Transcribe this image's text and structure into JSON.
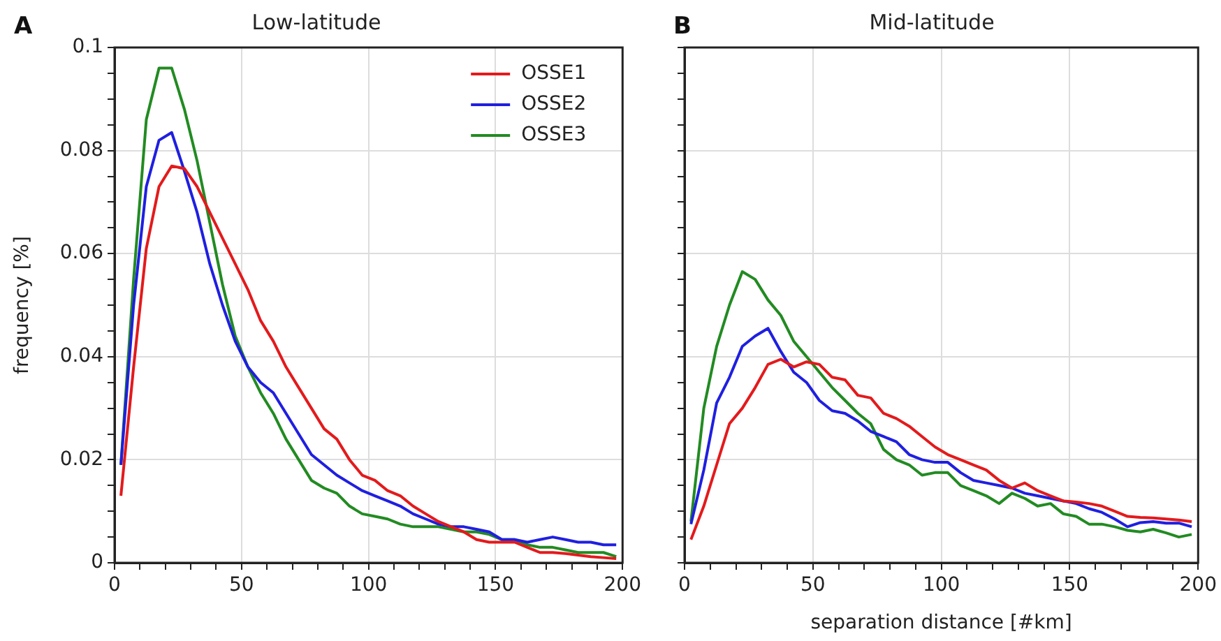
{
  "chart_data": [
    {
      "type": "line",
      "title": "Low-latitude",
      "ylabel": "frequency [%]",
      "annotations": [
        "A"
      ],
      "x": [
        2.5,
        7.5,
        12.5,
        17.5,
        22.5,
        27.5,
        32.5,
        37.5,
        42.5,
        47.5,
        52.5,
        57.5,
        62.5,
        67.5,
        72.5,
        77.5,
        82.5,
        87.5,
        92.5,
        97.5,
        102.5,
        107.5,
        112.5,
        117.5,
        122.5,
        127.5,
        132.5,
        137.5,
        142.5,
        147.5,
        152.5,
        157.5,
        162.5,
        167.5,
        172.5,
        177.5,
        182.5,
        187.5,
        192.5,
        197.5
      ],
      "series": [
        {
          "name": "OSSE1",
          "color": "#e31a1c",
          "values": [
            0.013,
            0.038,
            0.061,
            0.073,
            0.077,
            0.0765,
            0.073,
            0.068,
            0.063,
            0.058,
            0.053,
            0.047,
            0.043,
            0.038,
            0.034,
            0.03,
            0.026,
            0.024,
            0.02,
            0.017,
            0.016,
            0.014,
            0.013,
            0.011,
            0.0095,
            0.008,
            0.007,
            0.006,
            0.0045,
            0.004,
            0.004,
            0.004,
            0.003,
            0.002,
            0.002,
            0.0018,
            0.0015,
            0.0012,
            0.001,
            0.0008
          ]
        },
        {
          "name": "OSSE2",
          "color": "#1f1fe0",
          "values": [
            0.019,
            0.05,
            0.073,
            0.082,
            0.0835,
            0.076,
            0.068,
            0.058,
            0.05,
            0.043,
            0.038,
            0.035,
            0.033,
            0.029,
            0.025,
            0.021,
            0.019,
            0.017,
            0.0155,
            0.014,
            0.013,
            0.012,
            0.011,
            0.0095,
            0.0085,
            0.0075,
            0.007,
            0.007,
            0.0065,
            0.006,
            0.0045,
            0.0045,
            0.004,
            0.0045,
            0.005,
            0.0045,
            0.004,
            0.004,
            0.0035,
            0.0035
          ]
        },
        {
          "name": "OSSE3",
          "color": "#228b22",
          "values": [
            0.019,
            0.055,
            0.086,
            0.096,
            0.096,
            0.088,
            0.078,
            0.066,
            0.054,
            0.044,
            0.038,
            0.033,
            0.029,
            0.024,
            0.02,
            0.016,
            0.0145,
            0.0135,
            0.011,
            0.0095,
            0.009,
            0.0085,
            0.0075,
            0.007,
            0.007,
            0.007,
            0.0065,
            0.006,
            0.006,
            0.0055,
            0.0045,
            0.0045,
            0.0035,
            0.003,
            0.003,
            0.0025,
            0.002,
            0.002,
            0.002,
            0.0012
          ]
        }
      ],
      "xlim": [
        0,
        200
      ],
      "xticks": [
        0,
        {
          "value": 10,
          "label": null
        },
        {
          "value": 20,
          "label": null
        },
        {
          "value": 30,
          "label": null
        },
        {
          "value": 40,
          "label": null
        },
        50,
        {
          "value": 60,
          "label": null
        },
        {
          "value": 70,
          "label": null
        },
        {
          "value": 80,
          "label": null
        },
        {
          "value": 90,
          "label": null
        },
        100,
        {
          "value": 110,
          "label": null
        },
        {
          "value": 120,
          "label": null
        },
        {
          "value": 130,
          "label": null
        },
        {
          "value": 140,
          "label": null
        },
        150,
        {
          "value": 160,
          "label": null
        },
        {
          "value": 170,
          "label": null
        },
        {
          "value": 180,
          "label": null
        },
        {
          "value": 190,
          "label": null
        },
        200
      ],
      "ylim": [
        0,
        0.1
      ],
      "yticks": [
        0,
        {
          "value": 0.005,
          "label": null
        },
        {
          "value": 0.01,
          "label": null
        },
        {
          "value": 0.015,
          "label": null
        },
        0.02,
        {
          "value": 0.025,
          "label": null
        },
        {
          "value": 0.03,
          "label": null
        },
        {
          "value": 0.035,
          "label": null
        },
        0.04,
        {
          "value": 0.045,
          "label": null
        },
        {
          "value": 0.05,
          "label": null
        },
        {
          "value": 0.055,
          "label": null
        },
        0.06,
        {
          "value": 0.065,
          "label": null
        },
        {
          "value": 0.07,
          "label": null
        },
        {
          "value": 0.075,
          "label": null
        },
        0.08,
        {
          "value": 0.085,
          "label": null
        },
        {
          "value": 0.09,
          "label": null
        },
        {
          "value": 0.095,
          "label": null
        },
        0.1
      ],
      "grid": true,
      "legend": "top right",
      "marker": "none",
      "line_style": "solid"
    },
    {
      "type": "line",
      "title": "Mid-latitude",
      "xlabel": "separation distance [#km]",
      "annotations": [
        "B"
      ],
      "x": [
        2.5,
        7.5,
        12.5,
        17.5,
        22.5,
        27.5,
        32.5,
        37.5,
        42.5,
        47.5,
        52.5,
        57.5,
        62.5,
        67.5,
        72.5,
        77.5,
        82.5,
        87.5,
        92.5,
        97.5,
        102.5,
        107.5,
        112.5,
        117.5,
        122.5,
        127.5,
        132.5,
        137.5,
        142.5,
        147.5,
        152.5,
        157.5,
        162.5,
        167.5,
        172.5,
        177.5,
        182.5,
        187.5,
        192.5,
        197.5
      ],
      "series": [
        {
          "color": "#e31a1c",
          "values": [
            0.0045,
            0.011,
            0.019,
            0.027,
            0.03,
            0.034,
            0.0385,
            0.0395,
            0.038,
            0.039,
            0.0385,
            0.036,
            0.0355,
            0.0325,
            0.032,
            0.029,
            0.028,
            0.0265,
            0.0245,
            0.0225,
            0.021,
            0.02,
            0.019,
            0.018,
            0.016,
            0.0145,
            0.0155,
            0.014,
            0.013,
            0.012,
            0.0118,
            0.0115,
            0.011,
            0.01,
            0.009,
            0.0088,
            0.0087,
            0.0085,
            0.0083,
            0.008
          ]
        },
        {
          "color": "#1f1fe0",
          "values": [
            0.0075,
            0.018,
            0.031,
            0.036,
            0.042,
            0.044,
            0.0455,
            0.041,
            0.037,
            0.035,
            0.0315,
            0.0295,
            0.029,
            0.0275,
            0.0255,
            0.0245,
            0.0235,
            0.021,
            0.02,
            0.0195,
            0.0195,
            0.0175,
            0.016,
            0.0155,
            0.015,
            0.0145,
            0.0135,
            0.013,
            0.0125,
            0.012,
            0.0115,
            0.0105,
            0.0098,
            0.0085,
            0.007,
            0.0078,
            0.008,
            0.0077,
            0.0077,
            0.007
          ]
        },
        {
          "color": "#228b22",
          "values": [
            0.008,
            0.03,
            0.042,
            0.05,
            0.0565,
            0.055,
            0.051,
            0.048,
            0.043,
            0.04,
            0.037,
            0.034,
            0.0315,
            0.029,
            0.027,
            0.022,
            0.02,
            0.019,
            0.017,
            0.0175,
            0.0175,
            0.015,
            0.014,
            0.013,
            0.0115,
            0.0135,
            0.0125,
            0.011,
            0.0115,
            0.0095,
            0.009,
            0.0075,
            0.0075,
            0.007,
            0.0063,
            0.006,
            0.0065,
            0.0058,
            0.005,
            0.0055
          ]
        }
      ],
      "xlim": [
        0,
        200
      ],
      "xticks": [
        0,
        {
          "value": 10,
          "label": null
        },
        {
          "value": 20,
          "label": null
        },
        {
          "value": 30,
          "label": null
        },
        {
          "value": 40,
          "label": null
        },
        50,
        {
          "value": 60,
          "label": null
        },
        {
          "value": 70,
          "label": null
        },
        {
          "value": 80,
          "label": null
        },
        {
          "value": 90,
          "label": null
        },
        100,
        {
          "value": 110,
          "label": null
        },
        {
          "value": 120,
          "label": null
        },
        {
          "value": 130,
          "label": null
        },
        {
          "value": 140,
          "label": null
        },
        150,
        {
          "value": 160,
          "label": null
        },
        {
          "value": 170,
          "label": null
        },
        {
          "value": 180,
          "label": null
        },
        {
          "value": 190,
          "label": null
        },
        200
      ],
      "ylim": [
        0,
        0.1
      ],
      "yticks": [
        0,
        {
          "value": 0.005,
          "label": null
        },
        {
          "value": 0.01,
          "label": null
        },
        {
          "value": 0.015,
          "label": null
        },
        0.02,
        {
          "value": 0.025,
          "label": null
        },
        {
          "value": 0.03,
          "label": null
        },
        {
          "value": 0.035,
          "label": null
        },
        0.04,
        {
          "value": 0.045,
          "label": null
        },
        {
          "value": 0.05,
          "label": null
        },
        {
          "value": 0.055,
          "label": null
        },
        0.06,
        {
          "value": 0.065,
          "label": null
        },
        {
          "value": 0.07,
          "label": null
        },
        {
          "value": 0.075,
          "label": null
        },
        0.08,
        {
          "value": 0.085,
          "label": null
        },
        {
          "value": 0.09,
          "label": null
        },
        {
          "value": 0.095,
          "label": null
        },
        0.1
      ],
      "grid": true,
      "tick_labels": "x",
      "marker": "none",
      "line_style": "solid"
    }
  ]
}
